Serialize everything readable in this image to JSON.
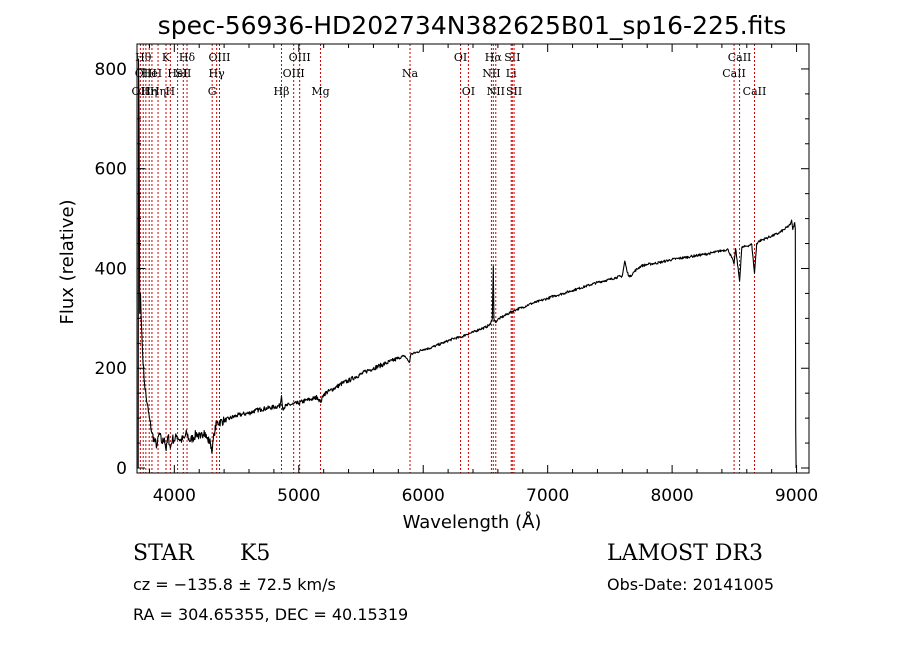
{
  "chart_data": {
    "type": "line",
    "title": "spec-56936-HD202734N382625B01_sp16-225.fits",
    "xlabel": "Wavelength (Å)",
    "ylabel": "Flux (relative)",
    "xlim": [
      3700,
      9100
    ],
    "ylim": [
      -10,
      850
    ],
    "xticks": [
      4000,
      5000,
      6000,
      7000,
      8000,
      9000
    ],
    "yticks": [
      0,
      200,
      400,
      600,
      800
    ],
    "grid": false,
    "line_color": "#000000",
    "marker_color": "#cc0000",
    "series": [
      {
        "name": "spectrum",
        "points": [
          [
            3710,
            0
          ],
          [
            3712,
            820
          ],
          [
            3716,
            720
          ],
          [
            3722,
            310
          ],
          [
            3728,
            350
          ],
          [
            3735,
            290
          ],
          [
            3745,
            230
          ],
          [
            3760,
            170
          ],
          [
            3780,
            130
          ],
          [
            3800,
            100
          ],
          [
            3820,
            70
          ],
          [
            3840,
            55
          ],
          [
            3860,
            45
          ],
          [
            3880,
            70
          ],
          [
            3900,
            50
          ],
          [
            3920,
            60
          ],
          [
            3935,
            35
          ],
          [
            3950,
            65
          ],
          [
            3968,
            40
          ],
          [
            3985,
            60
          ],
          [
            4000,
            55
          ],
          [
            4020,
            65
          ],
          [
            4050,
            55
          ],
          [
            4080,
            60
          ],
          [
            4100,
            70
          ],
          [
            4120,
            55
          ],
          [
            4150,
            60
          ],
          [
            4180,
            70
          ],
          [
            4210,
            60
          ],
          [
            4240,
            75
          ],
          [
            4260,
            60
          ],
          [
            4290,
            50
          ],
          [
            4305,
            35
          ],
          [
            4320,
            70
          ],
          [
            4340,
            90
          ],
          [
            4400,
            95
          ],
          [
            4450,
            100
          ],
          [
            4500,
            105
          ],
          [
            4550,
            108
          ],
          [
            4600,
            110
          ],
          [
            4650,
            115
          ],
          [
            4700,
            118
          ],
          [
            4750,
            120
          ],
          [
            4800,
            122
          ],
          [
            4850,
            125
          ],
          [
            4861,
            145
          ],
          [
            4870,
            120
          ],
          [
            4900,
            125
          ],
          [
            4950,
            128
          ],
          [
            5000,
            130
          ],
          [
            5050,
            135
          ],
          [
            5100,
            138
          ],
          [
            5150,
            142
          ],
          [
            5175,
            132
          ],
          [
            5200,
            148
          ],
          [
            5250,
            155
          ],
          [
            5300,
            162
          ],
          [
            5350,
            170
          ],
          [
            5400,
            175
          ],
          [
            5450,
            182
          ],
          [
            5500,
            188
          ],
          [
            5550,
            195
          ],
          [
            5600,
            200
          ],
          [
            5650,
            205
          ],
          [
            5700,
            210
          ],
          [
            5750,
            215
          ],
          [
            5800,
            220
          ],
          [
            5850,
            225
          ],
          [
            5890,
            212
          ],
          [
            5900,
            228
          ],
          [
            5950,
            232
          ],
          [
            6000,
            238
          ],
          [
            6050,
            240
          ],
          [
            6100,
            245
          ],
          [
            6150,
            250
          ],
          [
            6200,
            255
          ],
          [
            6250,
            260
          ],
          [
            6300,
            262
          ],
          [
            6350,
            268
          ],
          [
            6400,
            272
          ],
          [
            6450,
            278
          ],
          [
            6500,
            282
          ],
          [
            6540,
            288
          ],
          [
            6555,
            300
          ],
          [
            6563,
            405
          ],
          [
            6568,
            300
          ],
          [
            6580,
            292
          ],
          [
            6600,
            298
          ],
          [
            6650,
            305
          ],
          [
            6700,
            312
          ],
          [
            6750,
            318
          ],
          [
            6800,
            322
          ],
          [
            6850,
            328
          ],
          [
            6900,
            332
          ],
          [
            6950,
            336
          ],
          [
            7000,
            340
          ],
          [
            7050,
            345
          ],
          [
            7100,
            348
          ],
          [
            7150,
            352
          ],
          [
            7200,
            356
          ],
          [
            7250,
            360
          ],
          [
            7300,
            364
          ],
          [
            7350,
            368
          ],
          [
            7400,
            372
          ],
          [
            7450,
            375
          ],
          [
            7500,
            378
          ],
          [
            7550,
            382
          ],
          [
            7600,
            385
          ],
          [
            7620,
            415
          ],
          [
            7640,
            392
          ],
          [
            7660,
            383
          ],
          [
            7700,
            395
          ],
          [
            7750,
            405
          ],
          [
            7800,
            408
          ],
          [
            7850,
            410
          ],
          [
            7900,
            412
          ],
          [
            7950,
            415
          ],
          [
            8000,
            418
          ],
          [
            8050,
            420
          ],
          [
            8100,
            422
          ],
          [
            8150,
            424
          ],
          [
            8200,
            426
          ],
          [
            8250,
            428
          ],
          [
            8300,
            430
          ],
          [
            8350,
            433
          ],
          [
            8400,
            436
          ],
          [
            8450,
            438
          ],
          [
            8498,
            410
          ],
          [
            8510,
            440
          ],
          [
            8542,
            375
          ],
          [
            8560,
            442
          ],
          [
            8600,
            445
          ],
          [
            8640,
            448
          ],
          [
            8662,
            390
          ],
          [
            8680,
            450
          ],
          [
            8700,
            455
          ],
          [
            8750,
            460
          ],
          [
            8800,
            465
          ],
          [
            8850,
            470
          ],
          [
            8900,
            478
          ],
          [
            8950,
            488
          ],
          [
            8960,
            497
          ],
          [
            8970,
            478
          ],
          [
            8985,
            492
          ],
          [
            8990,
            480
          ],
          [
            8993,
            80
          ],
          [
            8996,
            0
          ]
        ]
      }
    ],
    "line_markers": [
      {
        "x": 3727,
        "label": "OII",
        "row": 3
      },
      {
        "x": 3750,
        "label": "Hθ",
        "row": 1
      },
      {
        "x": 3771,
        "label": "OIII",
        "row": 2
      },
      {
        "x": 3798,
        "label": "Hη",
        "row": 3
      },
      {
        "x": 3820,
        "label": "HeI",
        "row": 2
      },
      {
        "x": 3869,
        "label": "Hη",
        "row": 3
      },
      {
        "x": 3933,
        "label": "K",
        "row": 1
      },
      {
        "x": 3968,
        "label": "H",
        "row": 3
      },
      {
        "x": 4026,
        "label": "HeI",
        "row": 2
      },
      {
        "x": 4072,
        "label": "SII",
        "row": 2
      },
      {
        "x": 4102,
        "label": "Hδ",
        "row": 1
      },
      {
        "x": 4304,
        "label": "G",
        "row": 3
      },
      {
        "x": 4340,
        "label": "Hγ",
        "row": 2
      },
      {
        "x": 4363,
        "label": "OIII",
        "row": 1
      },
      {
        "x": 4861,
        "label": "Hβ",
        "row": 3
      },
      {
        "x": 4959,
        "label": "OIII",
        "row": 2
      },
      {
        "x": 5007,
        "label": "OIII",
        "row": 1
      },
      {
        "x": 5175,
        "label": "Mg",
        "row": 3
      },
      {
        "x": 5894,
        "label": "Na",
        "row": 2
      },
      {
        "x": 6300,
        "label": "OI",
        "row": 1
      },
      {
        "x": 6363,
        "label": "OI",
        "row": 3
      },
      {
        "x": 6548,
        "label": "NII",
        "row": 2
      },
      {
        "x": 6563,
        "label": "Hα",
        "row": 1
      },
      {
        "x": 6583,
        "label": "NII",
        "row": 3
      },
      {
        "x": 6707,
        "label": "Li",
        "row": 2
      },
      {
        "x": 6716,
        "label": "SII",
        "row": 1
      },
      {
        "x": 6730,
        "label": "SII",
        "row": 3
      },
      {
        "x": 8498,
        "label": "CaII",
        "row": 2
      },
      {
        "x": 8542,
        "label": "CaII",
        "row": 1
      },
      {
        "x": 8662,
        "label": "CaII",
        "row": 3
      }
    ]
  },
  "info": {
    "object_class": "STAR",
    "subclass": "K5",
    "survey": "LAMOST DR3",
    "redshift_text": "cz = −135.8 ± 72.5 km/s",
    "obs_date": "Obs-Date: 20141005",
    "coords": "RA = 304.65355, DEC =  40.15319"
  }
}
